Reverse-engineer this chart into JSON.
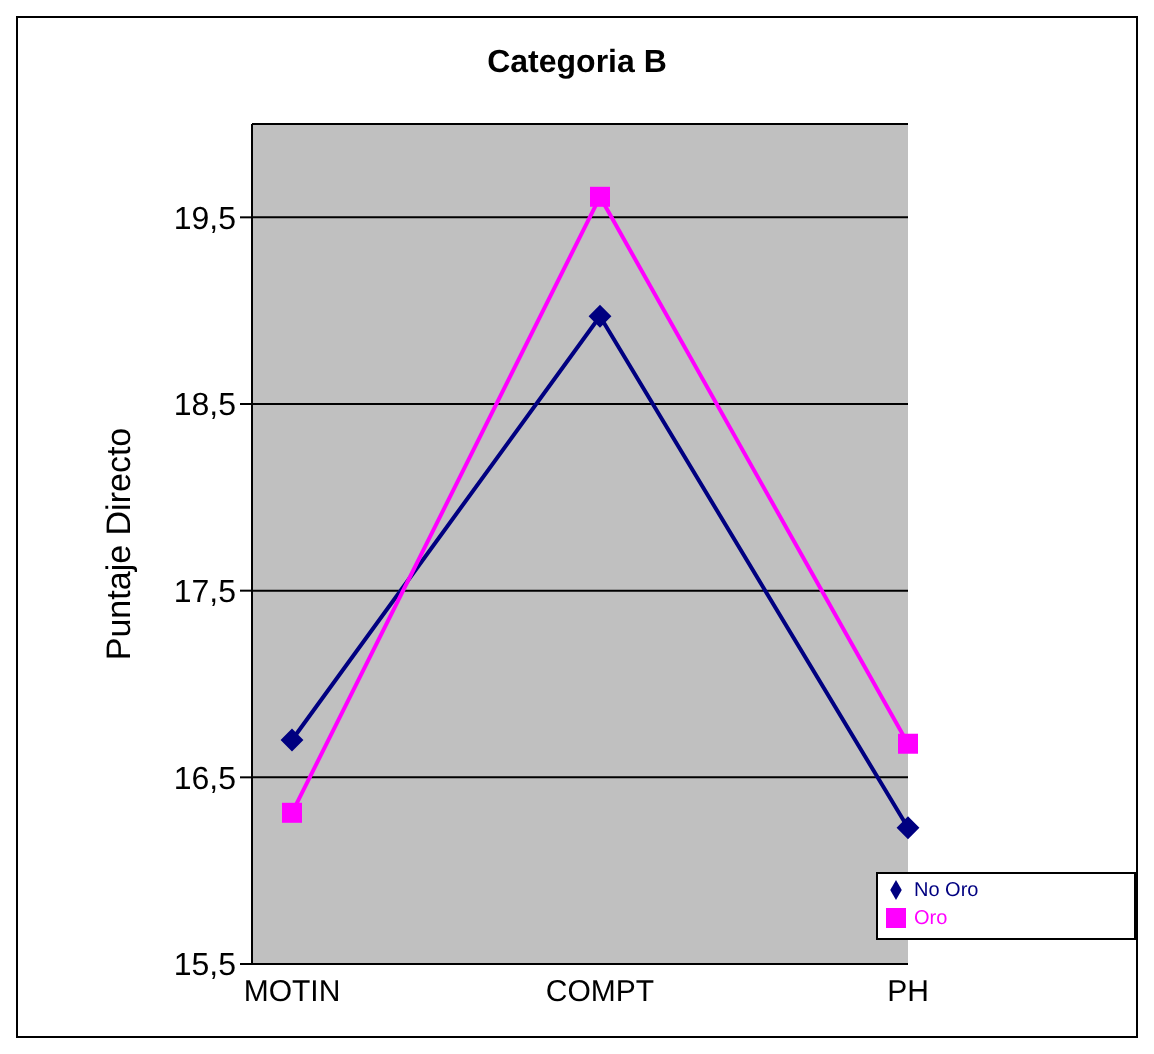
{
  "chart_data": {
    "type": "line",
    "title": "Categoria B",
    "ylabel": "Puntaje Directo",
    "categories": [
      "MOTIN",
      "COMPT",
      "PH"
    ],
    "series": [
      {
        "name": "No Oro",
        "color": "#000080",
        "values": [
          16.7,
          18.97,
          16.23
        ],
        "marker": "diamond"
      },
      {
        "name": "Oro",
        "color": "#ff00ff",
        "values": [
          16.31,
          19.61,
          16.68
        ],
        "marker": "square"
      }
    ],
    "ylim": [
      15.5,
      20
    ],
    "yticks": [
      {
        "value": 15.5,
        "label": "15,5"
      },
      {
        "value": 16.5,
        "label": "16,5"
      },
      {
        "value": 17.5,
        "label": "17,5"
      },
      {
        "value": 18.5,
        "label": "18,5"
      },
      {
        "value": 19.5,
        "label": "19,5"
      }
    ],
    "grid": "y",
    "legend": "bottom right",
    "line_style": "solid"
  }
}
